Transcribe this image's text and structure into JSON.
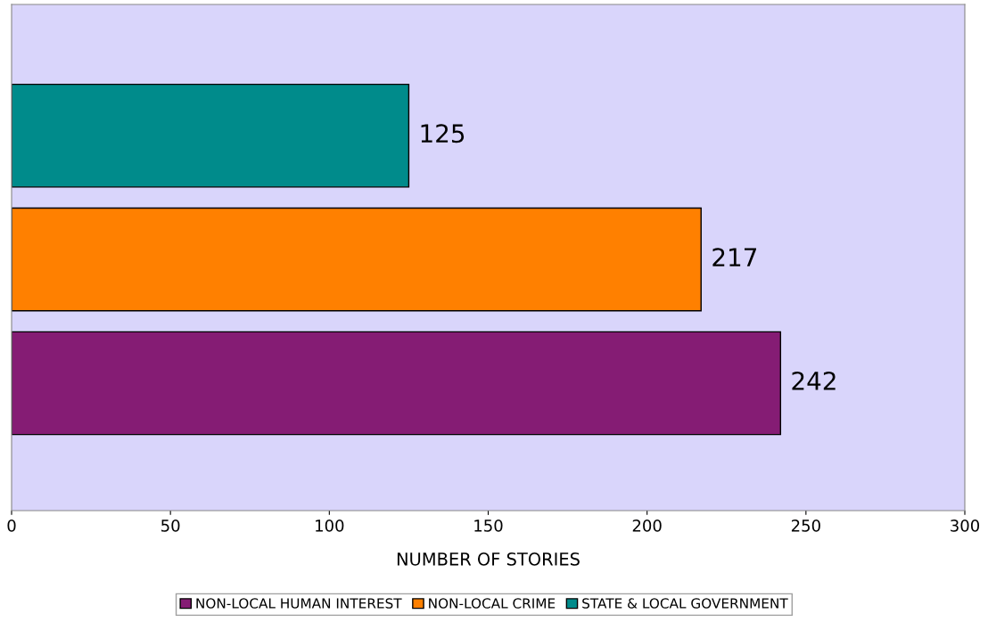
{
  "chart_data": {
    "type": "bar",
    "orientation": "horizontal",
    "xlabel": "NUMBER OF STORIES",
    "categories": [
      null,
      null,
      null
    ],
    "series": [
      {
        "name": "NON-LOCAL HUMAN INTEREST",
        "color": "#851c74",
        "values": [
          null,
          null,
          242
        ]
      },
      {
        "name": "NON-LOCAL CRIME",
        "color": "#ff8000",
        "values": [
          null,
          217,
          null
        ]
      },
      {
        "name": "STATE & LOCAL GOVERNMENT",
        "color": "#008b8b",
        "values": [
          125,
          null,
          null
        ]
      }
    ],
    "xlim": [
      0,
      300
    ],
    "xticks": [
      0,
      50,
      100,
      150,
      200,
      250,
      300
    ],
    "data_labels": true,
    "grid": false,
    "legend": "bottom",
    "tick_labels": "x"
  }
}
